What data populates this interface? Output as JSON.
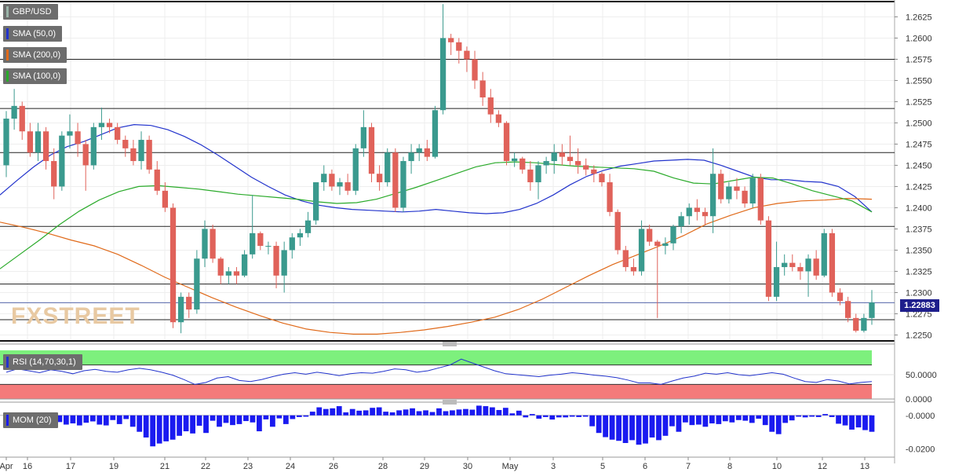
{
  "chart_data": [
    {
      "type": "candlestick",
      "title": "GBP/USD",
      "symbol_label": "GBP/USD",
      "last_price_label": "1.22883",
      "last_price": 1.22883,
      "x_labels": [
        "Apr",
        "16",
        "17",
        "19",
        "21",
        "22",
        "23",
        "24",
        "26",
        "28",
        "29",
        "30",
        "May",
        "3",
        "5",
        "6",
        "7",
        "8",
        "10",
        "12",
        "13"
      ],
      "y_ticks": [
        "1.2250",
        "1.2275",
        "1.2300",
        "1.2325",
        "1.2350",
        "1.2375",
        "1.2400",
        "1.2425",
        "1.2450",
        "1.2475",
        "1.2500",
        "1.2525",
        "1.2550",
        "1.2575",
        "1.2600",
        "1.2625"
      ],
      "ylim": [
        1.2243,
        1.2643
      ],
      "horizontal_levels": [
        1.2575,
        1.2517,
        1.2465,
        1.2378,
        1.231,
        1.2288,
        1.2268
      ],
      "indicators": [
        {
          "name": "SMA (50,0)",
          "color": "#2233cc",
          "values": [
            1.2415,
            1.2432,
            1.2448,
            1.2462,
            1.2472,
            1.2478,
            1.2486,
            1.2494,
            1.2498,
            1.2497,
            1.2492,
            1.2484,
            1.2474,
            1.2462,
            1.2449,
            1.2436,
            1.2425,
            1.2415,
            1.2408,
            1.2403,
            1.24,
            1.2398,
            1.2397,
            1.2396,
            1.2395,
            1.2396,
            1.2398,
            1.2396,
            1.2394,
            1.2393,
            1.2394,
            1.2398,
            1.2405,
            1.2415,
            1.2427,
            1.2437,
            1.2444,
            1.2449,
            1.2452,
            1.2455,
            1.2456,
            1.2457,
            1.2456,
            1.245,
            1.2443,
            1.2436,
            1.2433,
            1.2433,
            1.2431,
            1.243,
            1.2425,
            1.2413,
            1.2395
          ]
        },
        {
          "name": "SMA (200,0)",
          "color": "#e06a1a",
          "values": [
            1.2383,
            1.2377,
            1.237,
            1.2362,
            1.2355,
            1.2345,
            1.2332,
            1.2318,
            1.2306,
            1.2294,
            1.2283,
            1.2273,
            1.2264,
            1.2257,
            1.2253,
            1.2251,
            1.2251,
            1.2253,
            1.2256,
            1.226,
            1.2265,
            1.2271,
            1.228,
            1.2292,
            1.2306,
            1.232,
            1.2333,
            1.2344,
            1.2355,
            1.2367,
            1.2381,
            1.2391,
            1.24,
            1.2405,
            1.2408,
            1.2409,
            1.2411,
            1.241
          ]
        },
        {
          "name": "SMA (100,0)",
          "color": "#2aaa2a",
          "values": [
            1.2328,
            1.2345,
            1.2362,
            1.238,
            1.2396,
            1.2409,
            1.2419,
            1.2425,
            1.2426,
            1.2424,
            1.2422,
            1.2419,
            1.2416,
            1.2414,
            1.2412,
            1.241,
            1.2407,
            1.2405,
            1.2406,
            1.241,
            1.2417,
            1.2424,
            1.2432,
            1.244,
            1.2448,
            1.2453,
            1.2454,
            1.2453,
            1.2451,
            1.2449,
            1.2448,
            1.2447,
            1.2446,
            1.2443,
            1.2435,
            1.2429,
            1.2428,
            1.2432,
            1.2436,
            1.2435,
            1.2428,
            1.242,
            1.2414,
            1.2408,
            1.2395
          ]
        }
      ],
      "candles": [
        [
          1.245,
          1.2514,
          1.2436,
          1.2505
        ],
        [
          1.2505,
          1.254,
          1.2492,
          1.252
        ],
        [
          1.252,
          1.2525,
          1.248,
          1.249
        ],
        [
          1.249,
          1.25,
          1.246,
          1.2465
        ],
        [
          1.2465,
          1.25,
          1.2455,
          1.249
        ],
        [
          1.249,
          1.2495,
          1.2445,
          1.2455
        ],
        [
          1.2455,
          1.247,
          1.241,
          1.2425
        ],
        [
          1.2425,
          1.249,
          1.242,
          1.2485
        ],
        [
          1.2485,
          1.251,
          1.247,
          1.249
        ],
        [
          1.249,
          1.25,
          1.246,
          1.2475
        ],
        [
          1.2475,
          1.248,
          1.242,
          1.245
        ],
        [
          1.245,
          1.25,
          1.2445,
          1.2495
        ],
        [
          1.2495,
          1.2518,
          1.248,
          1.25
        ],
        [
          1.25,
          1.2505,
          1.2488,
          1.2495
        ],
        [
          1.2495,
          1.25,
          1.2475,
          1.248
        ],
        [
          1.248,
          1.2485,
          1.246,
          1.247
        ],
        [
          1.247,
          1.248,
          1.245,
          1.2455
        ],
        [
          1.2455,
          1.249,
          1.2445,
          1.248
        ],
        [
          1.248,
          1.2485,
          1.244,
          1.2445
        ],
        [
          1.2445,
          1.2455,
          1.2415,
          1.242
        ],
        [
          1.242,
          1.243,
          1.2395,
          1.24
        ],
        [
          1.24,
          1.2405,
          1.2258,
          1.2265
        ],
        [
          1.2265,
          1.23,
          1.2252,
          1.2295
        ],
        [
          1.2295,
          1.23,
          1.227,
          1.228
        ],
        [
          1.228,
          1.235,
          1.2275,
          1.234
        ],
        [
          1.234,
          1.2385,
          1.233,
          1.2375
        ],
        [
          1.2375,
          1.238,
          1.2335,
          1.234
        ],
        [
          1.234,
          1.2342,
          1.231,
          1.232
        ],
        [
          1.232,
          1.233,
          1.231,
          1.2325
        ],
        [
          1.2325,
          1.233,
          1.231,
          1.232
        ],
        [
          1.232,
          1.235,
          1.2318,
          1.2345
        ],
        [
          1.2345,
          1.2415,
          1.234,
          1.237
        ],
        [
          1.237,
          1.2372,
          1.235,
          1.2355
        ],
        [
          1.2355,
          1.236,
          1.2345,
          1.2355
        ],
        [
          1.2355,
          1.236,
          1.2305,
          1.232
        ],
        [
          1.232,
          1.236,
          1.23,
          1.235
        ],
        [
          1.235,
          1.237,
          1.234,
          1.2365
        ],
        [
          1.2365,
          1.2375,
          1.2355,
          1.237
        ],
        [
          1.237,
          1.2395,
          1.2365,
          1.2385
        ],
        [
          1.2385,
          1.243,
          1.238,
          1.243
        ],
        [
          1.243,
          1.245,
          1.242,
          1.244
        ],
        [
          1.244,
          1.2445,
          1.242,
          1.2425
        ],
        [
          1.2425,
          1.2435,
          1.2415,
          1.243
        ],
        [
          1.243,
          1.244,
          1.2415,
          1.242
        ],
        [
          1.242,
          1.2475,
          1.2415,
          1.247
        ],
        [
          1.247,
          1.2515,
          1.246,
          1.2495
        ],
        [
          1.2495,
          1.25,
          1.243,
          1.244
        ],
        [
          1.244,
          1.245,
          1.242,
          1.243
        ],
        [
          1.243,
          1.247,
          1.2425,
          1.2465
        ],
        [
          1.2465,
          1.247,
          1.2395,
          1.24
        ],
        [
          1.24,
          1.246,
          1.2395,
          1.2455
        ],
        [
          1.2455,
          1.2475,
          1.244,
          1.2465
        ],
        [
          1.2465,
          1.2475,
          1.2455,
          1.247
        ],
        [
          1.247,
          1.248,
          1.2455,
          1.246
        ],
        [
          1.246,
          1.252,
          1.2458,
          1.2515
        ],
        [
          1.2515,
          1.264,
          1.251,
          1.26
        ],
        [
          1.26,
          1.2605,
          1.258,
          1.2595
        ],
        [
          1.2595,
          1.26,
          1.257,
          1.2585
        ],
        [
          1.2585,
          1.259,
          1.256,
          1.2575
        ],
        [
          1.2575,
          1.2585,
          1.254,
          1.255
        ],
        [
          1.255,
          1.256,
          1.252,
          1.253
        ],
        [
          1.253,
          1.254,
          1.25,
          1.251
        ],
        [
          1.251,
          1.2515,
          1.2495,
          1.25
        ],
        [
          1.25,
          1.2502,
          1.245,
          1.2455
        ],
        [
          1.2455,
          1.2465,
          1.2448,
          1.2458
        ],
        [
          1.2458,
          1.246,
          1.244,
          1.2445
        ],
        [
          1.2445,
          1.2455,
          1.242,
          1.243
        ],
        [
          1.243,
          1.2455,
          1.241,
          1.245
        ],
        [
          1.245,
          1.246,
          1.244,
          1.2455
        ],
        [
          1.2455,
          1.2475,
          1.244,
          1.2465
        ],
        [
          1.2465,
          1.2475,
          1.245,
          1.246
        ],
        [
          1.246,
          1.2485,
          1.245,
          1.2455
        ],
        [
          1.2455,
          1.247,
          1.244,
          1.245
        ],
        [
          1.245,
          1.2458,
          1.2438,
          1.2445
        ],
        [
          1.2445,
          1.245,
          1.243,
          1.244
        ],
        [
          1.244,
          1.2442,
          1.2425,
          1.243
        ],
        [
          1.243,
          1.244,
          1.239,
          1.2395
        ],
        [
          1.2395,
          1.2398,
          1.2345,
          1.235
        ],
        [
          1.235,
          1.2355,
          1.2325,
          1.233
        ],
        [
          1.233,
          1.234,
          1.232,
          1.2325
        ],
        [
          1.2325,
          1.2385,
          1.232,
          1.2375
        ],
        [
          1.2375,
          1.238,
          1.2355,
          1.236
        ],
        [
          1.236,
          1.2362,
          1.227,
          1.2355
        ],
        [
          1.2355,
          1.2365,
          1.2345,
          1.2358
        ],
        [
          1.2358,
          1.238,
          1.235,
          1.2378
        ],
        [
          1.2378,
          1.2395,
          1.237,
          1.239
        ],
        [
          1.239,
          1.2405,
          1.238,
          1.24
        ],
        [
          1.24,
          1.241,
          1.2385,
          1.2395
        ],
        [
          1.2395,
          1.24,
          1.238,
          1.239
        ],
        [
          1.239,
          1.247,
          1.237,
          1.244
        ],
        [
          1.244,
          1.2445,
          1.2405,
          1.241
        ],
        [
          1.241,
          1.243,
          1.2405,
          1.2425
        ],
        [
          1.2425,
          1.2435,
          1.241,
          1.242
        ],
        [
          1.242,
          1.2425,
          1.24,
          1.2405
        ],
        [
          1.2405,
          1.244,
          1.24,
          1.2435
        ],
        [
          1.2435,
          1.244,
          1.238,
          1.2385
        ],
        [
          1.2385,
          1.239,
          1.229,
          1.2295
        ],
        [
          1.2295,
          1.236,
          1.229,
          1.233
        ],
        [
          1.233,
          1.2345,
          1.232,
          1.2335
        ],
        [
          1.2335,
          1.2345,
          1.2325,
          1.233
        ],
        [
          1.233,
          1.2335,
          1.2315,
          1.2325
        ],
        [
          1.2325,
          1.2345,
          1.2295,
          1.234
        ],
        [
          1.234,
          1.235,
          1.2315,
          1.232
        ],
        [
          1.232,
          1.2375,
          1.2318,
          1.237
        ],
        [
          1.237,
          1.2375,
          1.2295,
          1.23
        ],
        [
          1.23,
          1.2305,
          1.2285,
          1.229
        ],
        [
          1.229,
          1.2295,
          1.2265,
          1.227
        ],
        [
          1.227,
          1.2275,
          1.2253,
          1.2255
        ],
        [
          1.2255,
          1.2275,
          1.2253,
          1.227
        ],
        [
          1.227,
          1.2303,
          1.2262,
          1.22883
        ]
      ]
    },
    {
      "type": "line",
      "title": "RSI (14,70,30,1)",
      "ylim": [
        0,
        100
      ],
      "y_ticks": [
        "0.0000",
        "50.0000"
      ],
      "overbought": 70,
      "oversold": 30,
      "series": [
        {
          "name": "RSI (14,70,30,1)",
          "color": "#2233cc",
          "values": [
            55,
            62,
            58,
            54,
            60,
            57,
            52,
            58,
            61,
            57,
            55,
            60,
            63,
            60,
            55,
            49,
            40,
            30,
            34,
            43,
            46,
            38,
            36,
            40,
            46,
            51,
            54,
            51,
            55,
            52,
            48,
            52,
            54,
            53,
            57,
            62,
            60,
            55,
            58,
            64,
            70,
            82,
            74,
            66,
            58,
            52,
            50,
            48,
            46,
            49,
            51,
            54,
            52,
            49,
            47,
            44,
            39,
            33,
            33,
            30,
            37,
            43,
            47,
            53,
            51,
            54,
            50,
            48,
            51,
            54,
            51,
            43,
            36,
            34,
            40,
            37,
            31,
            34,
            36
          ]
        }
      ]
    },
    {
      "type": "bar",
      "title": "MOM (20)",
      "ylim": [
        -0.024,
        0.006
      ],
      "y_ticks": [
        "-0.0000",
        "-0.0200"
      ],
      "series": [
        {
          "name": "MOM (20)",
          "color": "#1a1af0",
          "values": [
            -0.0006,
            -0.0012,
            -0.0018,
            -0.0008,
            -0.001,
            -0.0025,
            -0.0034,
            -0.003,
            -0.004,
            -0.0055,
            -0.0048,
            -0.006,
            -0.0044,
            -0.0036,
            -0.0055,
            -0.006,
            -0.0028,
            -0.0052,
            -0.0022,
            -0.0068,
            -0.0098,
            -0.0132,
            -0.0185,
            -0.0168,
            -0.0155,
            -0.0145,
            -0.0122,
            -0.0095,
            -0.0108,
            -0.0062,
            -0.0105,
            -0.0032,
            -0.0068,
            -0.0045,
            -0.0058,
            -0.0052,
            -0.0034,
            -0.0042,
            -0.0095,
            -0.0024,
            -0.0068,
            -0.0018,
            -0.0052,
            -0.0022,
            -0.001,
            -0.0008,
            0.0022,
            0.0048,
            0.0038,
            0.0042,
            0.0055,
            0.0018,
            0.0038,
            0.0028,
            0.003,
            0.0045,
            0.0048,
            0.0022,
            0.0018,
            0.003,
            0.0035,
            0.0042,
            0.0025,
            0.003,
            0.002,
            0.0042,
            0.0025,
            0.003,
            0.0035,
            0.0038,
            0.0034,
            0.0058,
            0.0055,
            0.0048,
            0.0032,
            0.0045,
            0.0012,
            0.0028,
            -0.0012,
            0.0008,
            -0.002,
            -0.001,
            -0.0025,
            -0.0012,
            -0.0012,
            -0.0008,
            -0.001,
            -0.0008,
            -0.0065,
            -0.0105,
            -0.013,
            -0.0145,
            -0.0152,
            -0.0165,
            -0.0148,
            -0.0175,
            -0.0168,
            -0.0132,
            -0.0148,
            -0.0122,
            -0.0065,
            -0.0098,
            -0.0042,
            -0.0058,
            -0.0055,
            -0.0068,
            -0.0048,
            -0.0052,
            -0.0035,
            -0.0042,
            -0.0028,
            -0.0032,
            -0.0045,
            -0.002,
            -0.0058,
            -0.0098,
            -0.0112,
            -0.0045,
            -0.003,
            -0.0008,
            -0.0012,
            -0.0008,
            -0.001,
            0.0008,
            -0.001,
            -0.005,
            -0.006,
            -0.0085,
            -0.0072,
            -0.0088,
            -0.0098
          ]
        }
      ]
    }
  ],
  "legend": {
    "symbol": "GBP/USD",
    "sma50": "SMA (50,0)",
    "sma200": "SMA (200,0)",
    "sma100": "SMA (100,0)",
    "rsi": "RSI (14,70,30,1)",
    "mom": "MOM (20)"
  },
  "watermark": "FXSTREET",
  "colors": {
    "bull": "#3a9a8e",
    "bear": "#e0625a",
    "sma50": "#2233cc",
    "sma200": "#e06a1a",
    "sma100": "#2aaa2a",
    "rsi_overbought": "#7df07d",
    "rsi_oversold": "#f47a7a",
    "mom": "#1a1af0",
    "price_tag": "#1e1e8c"
  }
}
